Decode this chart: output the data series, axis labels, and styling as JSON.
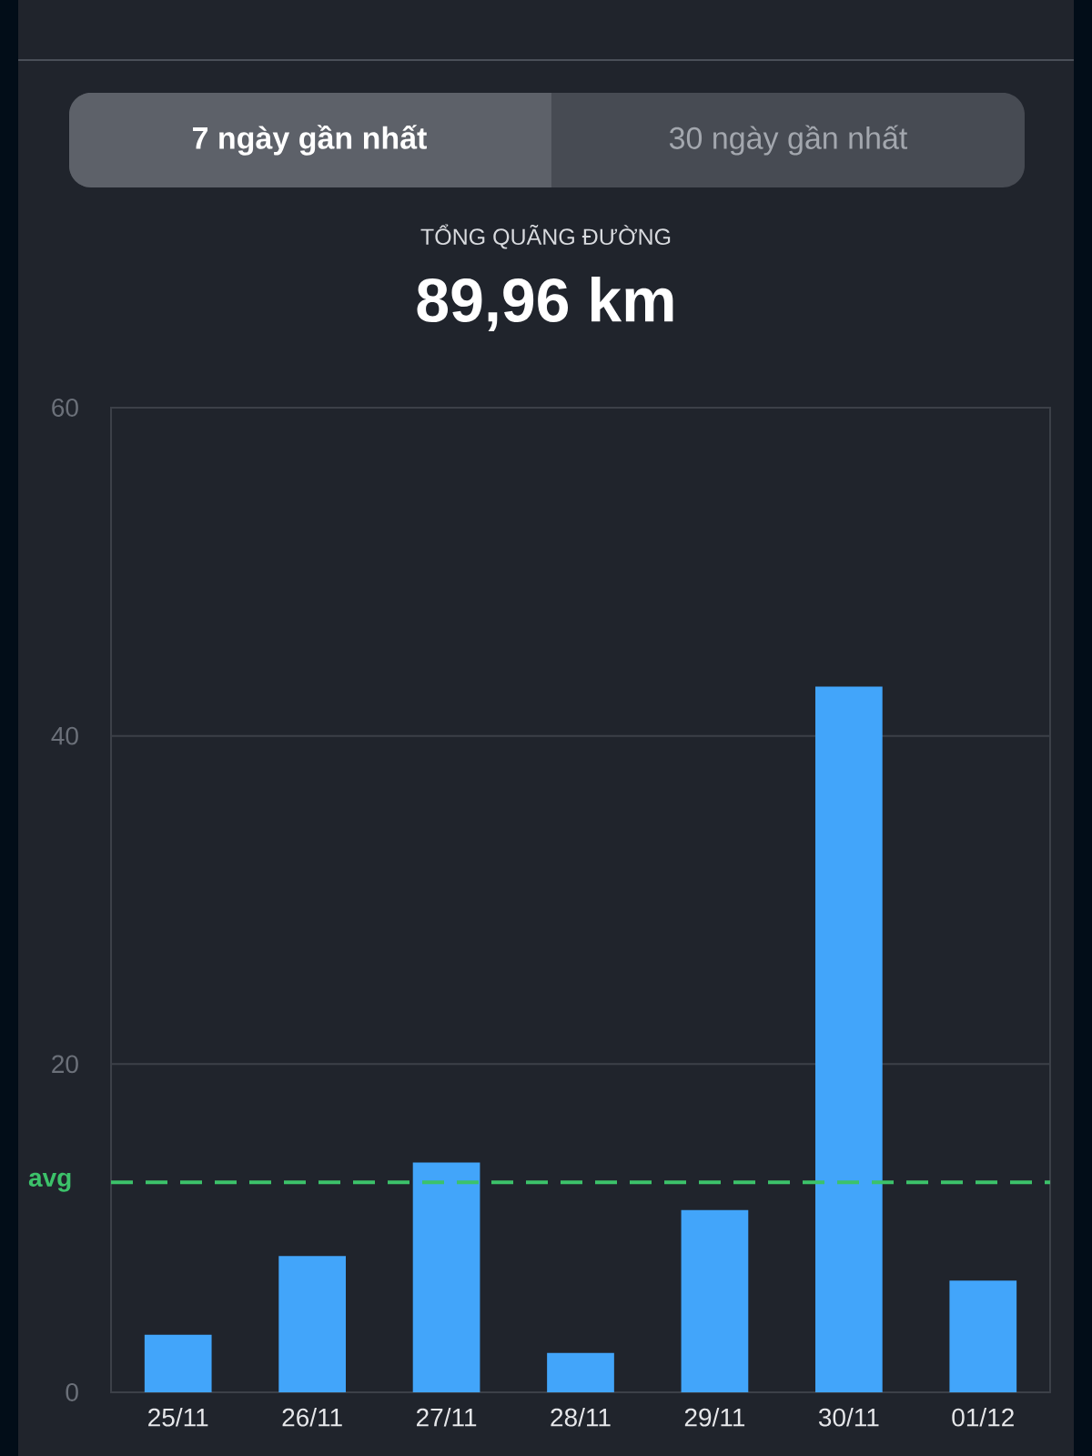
{
  "chart_data": {
    "type": "bar",
    "title": "TỔNG QUÃNG ĐƯỜNG",
    "subtitle": "89,96 km",
    "annotations": [
      "7 ngày gần nhất",
      "30 ngày gần nhất"
    ],
    "categories": [
      "25/11",
      "26/11",
      "27/11",
      "28/11",
      "29/11",
      "30/11",
      "01/12"
    ],
    "values": [
      3.5,
      8.3,
      14.0,
      2.4,
      11.1,
      43.0,
      6.8
    ],
    "color": "#42a5fa",
    "ylim": [
      0,
      60
    ],
    "yticks": [
      0,
      20,
      40,
      60
    ],
    "grid": "y",
    "ref_lines": [
      {
        "axis": "y",
        "value": 12.8,
        "label": "avg",
        "color": "#3cc26a",
        "line_style": "dashed"
      }
    ]
  }
}
